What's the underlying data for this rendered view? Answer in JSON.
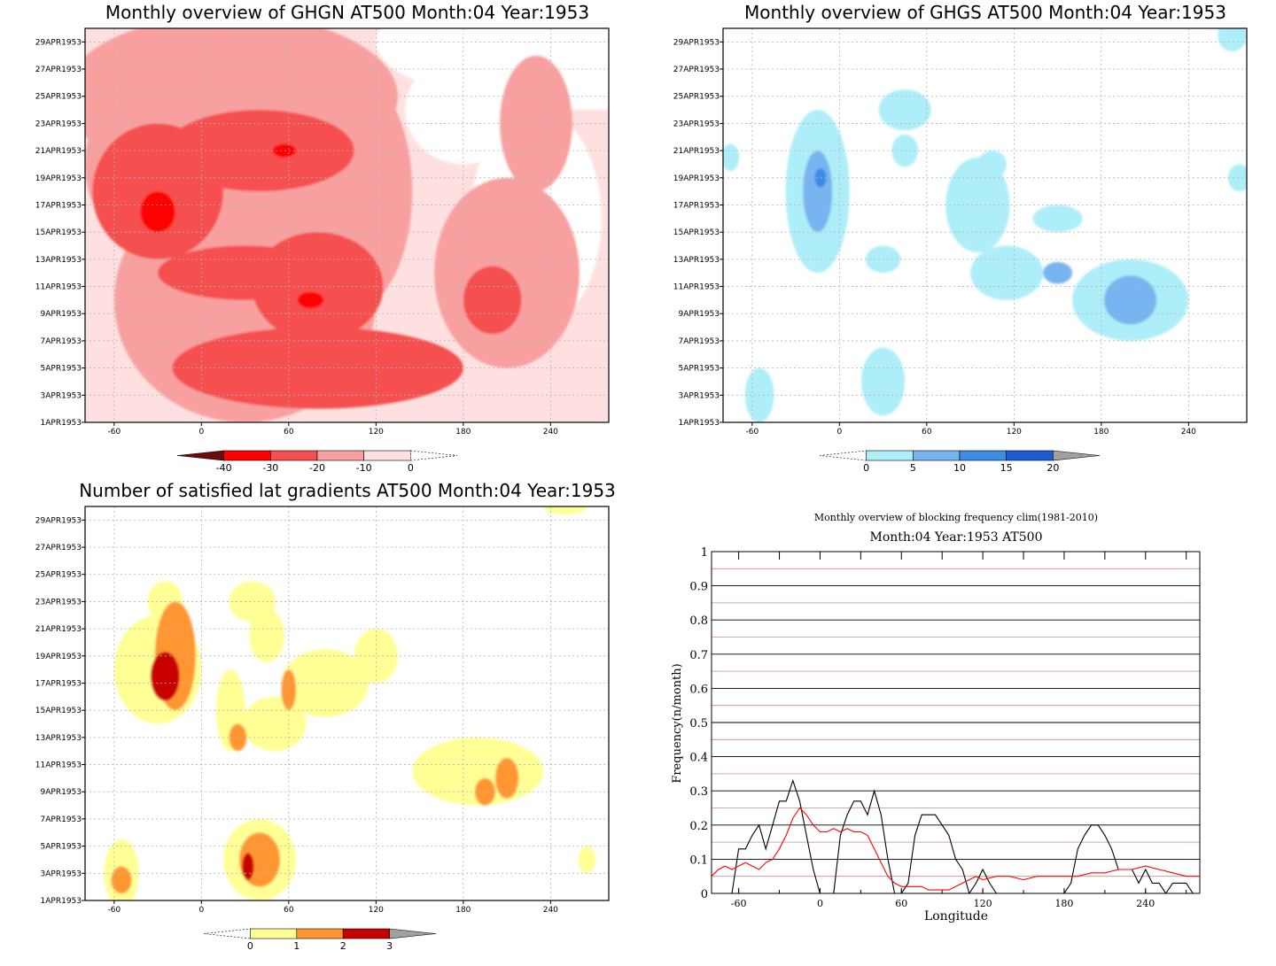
{
  "chart_data": [
    {
      "type": "heatmap",
      "title": "Monthly overview of GHGN AT500 Month:04 Year:1953",
      "x_ticks": [
        "-60",
        "0",
        "60",
        "120",
        "180",
        "240"
      ],
      "x_tick_values": [
        -60,
        0,
        60,
        120,
        180,
        240
      ],
      "xlim": [
        -80,
        280
      ],
      "y_ticks": [
        "1APR1953",
        "3APR1953",
        "5APR1953",
        "7APR1953",
        "9APR1953",
        "11APR1953",
        "13APR1953",
        "15APR1953",
        "17APR1953",
        "19APR1953",
        "21APR1953",
        "23APR1953",
        "25APR1953",
        "27APR1953",
        "29APR1953"
      ],
      "ylim": [
        1,
        30
      ],
      "grid": true,
      "colorbar": {
        "labels": [
          "-40",
          "-30",
          "-20",
          "-10",
          "0"
        ],
        "colors": [
          "#6e0a0a",
          "#ff0000",
          "#f55050",
          "#f8a0a0",
          "#ffe0e0",
          "#ffffff"
        ]
      },
      "fields": [
        {
          "x": 270,
          "y": 29,
          "rx": 150,
          "ry": 5,
          "level": 0
        },
        {
          "x": 180,
          "y": 24,
          "rx": 40,
          "ry": 4,
          "level": 0
        },
        {
          "x": 230,
          "y": 16,
          "rx": 45,
          "ry": 8,
          "level": 0
        },
        {
          "x": 20,
          "y": 25,
          "rx": 115,
          "ry": 6,
          "level": 1
        },
        {
          "x": 0,
          "y": 20,
          "rx": 80,
          "ry": 8,
          "level": 1
        },
        {
          "x": 30,
          "y": 10,
          "rx": 90,
          "ry": 9,
          "level": 1
        },
        {
          "x": 230,
          "y": 23,
          "rx": 25,
          "ry": 5,
          "level": 1
        },
        {
          "x": 210,
          "y": 12,
          "rx": 50,
          "ry": 7,
          "level": 1
        },
        {
          "x": 100,
          "y": 18,
          "rx": 45,
          "ry": 9,
          "level": 1
        },
        {
          "x": -30,
          "y": 18,
          "rx": 45,
          "ry": 5,
          "level": 2
        },
        {
          "x": 40,
          "y": 21,
          "rx": 65,
          "ry": 3,
          "level": 2
        },
        {
          "x": 30,
          "y": 12,
          "rx": 60,
          "ry": 2,
          "level": 2
        },
        {
          "x": 80,
          "y": 5,
          "rx": 100,
          "ry": 3,
          "level": 2
        },
        {
          "x": 80,
          "y": 11,
          "rx": 45,
          "ry": 4,
          "level": 2
        },
        {
          "x": 200,
          "y": 10,
          "rx": 20,
          "ry": 2.5,
          "level": 2
        },
        {
          "x": -30,
          "y": 16.5,
          "rx": 12,
          "ry": 1.5,
          "level": 3
        },
        {
          "x": 57,
          "y": 21,
          "rx": 8,
          "ry": 0.5,
          "level": 3
        },
        {
          "x": 75,
          "y": 10,
          "rx": 9,
          "ry": 0.6,
          "level": 3
        }
      ]
    },
    {
      "type": "heatmap",
      "title": "Monthly overview of GHGS AT500 Month:04 Year:1953",
      "x_ticks": [
        "-60",
        "0",
        "60",
        "120",
        "180",
        "240"
      ],
      "x_tick_values": [
        -60,
        0,
        60,
        120,
        180,
        240
      ],
      "xlim": [
        -80,
        280
      ],
      "y_ticks": [
        "1APR1953",
        "3APR1953",
        "5APR1953",
        "7APR1953",
        "9APR1953",
        "11APR1953",
        "13APR1953",
        "15APR1953",
        "17APR1953",
        "19APR1953",
        "21APR1953",
        "23APR1953",
        "25APR1953",
        "27APR1953",
        "29APR1953"
      ],
      "ylim": [
        1,
        30
      ],
      "grid": true,
      "colorbar": {
        "labels": [
          "0",
          "5",
          "10",
          "15",
          "20"
        ],
        "colors": [
          "#ffffff",
          "#aeeef8",
          "#78b4f0",
          "#3c8ce8",
          "#1e5ad2",
          "#a0a0a0"
        ]
      },
      "fields": [
        {
          "x": -15,
          "y": 18,
          "rx": 22,
          "ry": 6,
          "level": 1
        },
        {
          "x": 45,
          "y": 24,
          "rx": 18,
          "ry": 1.5,
          "level": 1
        },
        {
          "x": 115,
          "y": 12,
          "rx": 25,
          "ry": 2,
          "level": 1
        },
        {
          "x": 95,
          "y": 17,
          "rx": 22,
          "ry": 3.5,
          "level": 1
        },
        {
          "x": 200,
          "y": 10,
          "rx": 40,
          "ry": 3,
          "level": 1
        },
        {
          "x": -55,
          "y": 3,
          "rx": 10,
          "ry": 2,
          "level": 1
        },
        {
          "x": 30,
          "y": 4,
          "rx": 15,
          "ry": 2.5,
          "level": 1
        },
        {
          "x": 150,
          "y": 16,
          "rx": 17,
          "ry": 1,
          "level": 1
        },
        {
          "x": 270,
          "y": 29.5,
          "rx": 10,
          "ry": 1.2,
          "level": 1
        },
        {
          "x": 30,
          "y": 13,
          "rx": 12,
          "ry": 1,
          "level": 1
        },
        {
          "x": 275,
          "y": 19,
          "rx": 8,
          "ry": 1,
          "level": 1
        },
        {
          "x": -75,
          "y": 20.5,
          "rx": 6,
          "ry": 1,
          "level": 1
        },
        {
          "x": 105,
          "y": 20,
          "rx": 10,
          "ry": 1,
          "level": 1
        },
        {
          "x": 45,
          "y": 21,
          "rx": 9,
          "ry": 1.2,
          "level": 1
        },
        {
          "x": -15,
          "y": 18,
          "rx": 10,
          "ry": 3,
          "level": 2
        },
        {
          "x": 200,
          "y": 10,
          "rx": 18,
          "ry": 1.8,
          "level": 2
        },
        {
          "x": 150,
          "y": 12,
          "rx": 10,
          "ry": 0.8,
          "level": 2
        },
        {
          "x": -13,
          "y": 19,
          "rx": 4,
          "ry": 0.7,
          "level": 3
        }
      ]
    },
    {
      "type": "heatmap",
      "title": "Number of satisfied lat gradients AT500 Month:04 Year:1953",
      "x_ticks": [
        "-60",
        "0",
        "60",
        "120",
        "180",
        "240"
      ],
      "x_tick_values": [
        -60,
        0,
        60,
        120,
        180,
        240
      ],
      "xlim": [
        -80,
        280
      ],
      "y_ticks": [
        "1APR1953",
        "3APR1953",
        "5APR1953",
        "7APR1953",
        "9APR1953",
        "11APR1953",
        "13APR1953",
        "15APR1953",
        "17APR1953",
        "19APR1953",
        "21APR1953",
        "23APR1953",
        "25APR1953",
        "27APR1953",
        "29APR1953"
      ],
      "ylim": [
        1,
        30
      ],
      "grid": true,
      "colorbar": {
        "labels": [
          "0",
          "1",
          "2",
          "3"
        ],
        "colors": [
          "#ffffff",
          "#ffff96",
          "#ff9632",
          "#c80000",
          "#a0a0a0"
        ]
      },
      "fields": [
        {
          "x": -30,
          "y": 18,
          "rx": 30,
          "ry": 4,
          "level": 1
        },
        {
          "x": -25,
          "y": 23,
          "rx": 12,
          "ry": 1.5,
          "level": 1
        },
        {
          "x": 35,
          "y": 23,
          "rx": 16,
          "ry": 1.5,
          "level": 1
        },
        {
          "x": 85,
          "y": 17,
          "rx": 30,
          "ry": 2.5,
          "level": 1
        },
        {
          "x": 50,
          "y": 14,
          "rx": 22,
          "ry": 2,
          "level": 1
        },
        {
          "x": 190,
          "y": 10.5,
          "rx": 45,
          "ry": 2.5,
          "level": 1
        },
        {
          "x": -55,
          "y": 3,
          "rx": 12,
          "ry": 2.5,
          "level": 1
        },
        {
          "x": 40,
          "y": 4,
          "rx": 25,
          "ry": 3,
          "level": 1
        },
        {
          "x": 265,
          "y": 4,
          "rx": 6,
          "ry": 1,
          "level": 1
        },
        {
          "x": 250,
          "y": 30,
          "rx": 15,
          "ry": 0.6,
          "level": 1
        },
        {
          "x": 120,
          "y": 19,
          "rx": 15,
          "ry": 2,
          "level": 1
        },
        {
          "x": 45,
          "y": 20.5,
          "rx": 12,
          "ry": 2,
          "level": 1
        },
        {
          "x": 20,
          "y": 15,
          "rx": 10,
          "ry": 3,
          "level": 1
        },
        {
          "x": -18,
          "y": 19,
          "rx": 14,
          "ry": 4,
          "level": 2
        },
        {
          "x": 60,
          "y": 16.5,
          "rx": 5,
          "ry": 1.5,
          "level": 2
        },
        {
          "x": 25,
          "y": 13,
          "rx": 6,
          "ry": 1,
          "level": 2
        },
        {
          "x": 40,
          "y": 4,
          "rx": 14,
          "ry": 2,
          "level": 2
        },
        {
          "x": -55,
          "y": 2.5,
          "rx": 7,
          "ry": 1,
          "level": 2
        },
        {
          "x": 210,
          "y": 10,
          "rx": 8,
          "ry": 1.5,
          "level": 2
        },
        {
          "x": 195,
          "y": 9,
          "rx": 7,
          "ry": 1,
          "level": 2
        },
        {
          "x": -25,
          "y": 17.5,
          "rx": 10,
          "ry": 1.8,
          "level": 3
        },
        {
          "x": 32,
          "y": 3.5,
          "rx": 4,
          "ry": 1,
          "level": 3
        }
      ]
    },
    {
      "type": "line",
      "title": "Monthly overview of blocking frequency clim(1981-2010)",
      "subtitle": "Month:04 Year:1953  AT500",
      "xlabel": "Longitude",
      "ylabel": "Frequency(n/month)",
      "xlim": [
        -80,
        280
      ],
      "ylim": [
        0,
        1
      ],
      "x_ticks": [
        "-60",
        "0",
        "60",
        "120",
        "180",
        "240"
      ],
      "x_tick_values": [
        -60,
        0,
        60,
        120,
        180,
        240
      ],
      "y_ticks": [
        "0",
        "0.1",
        "0.2",
        "0.3",
        "0.4",
        "0.5",
        "0.6",
        "0.7",
        "0.8",
        "0.9",
        "1"
      ],
      "y_tick_values": [
        0,
        0.1,
        0.2,
        0.3,
        0.4,
        0.5,
        0.6,
        0.7,
        0.8,
        0.9,
        1.0
      ],
      "grid": true,
      "series": [
        {
          "color": "#000000",
          "x": [
            -80,
            -75,
            -70,
            -65,
            -60,
            -55,
            -50,
            -45,
            -40,
            -35,
            -30,
            -25,
            -20,
            -15,
            -10,
            -5,
            0,
            5,
            10,
            15,
            20,
            25,
            30,
            35,
            40,
            45,
            50,
            55,
            60,
            65,
            70,
            75,
            80,
            85,
            90,
            95,
            100,
            105,
            110,
            115,
            120,
            125,
            130,
            180,
            185,
            190,
            195,
            200,
            205,
            210,
            215,
            220,
            225,
            230,
            235,
            240,
            245,
            250,
            255,
            260,
            265,
            270,
            275
          ],
          "y": [
            0.0,
            0.0,
            0.0,
            0.0,
            0.13,
            0.13,
            0.17,
            0.2,
            0.13,
            0.2,
            0.27,
            0.27,
            0.33,
            0.27,
            0.17,
            0.07,
            0.0,
            0.0,
            0.0,
            0.17,
            0.23,
            0.27,
            0.27,
            0.23,
            0.3,
            0.23,
            0.1,
            0.0,
            0.0,
            0.03,
            0.17,
            0.23,
            0.23,
            0.23,
            0.2,
            0.17,
            0.1,
            0.07,
            0.0,
            0.03,
            0.07,
            0.03,
            0.0,
            0.0,
            0.03,
            0.13,
            0.17,
            0.2,
            0.2,
            0.17,
            0.13,
            0.07,
            0.07,
            0.07,
            0.03,
            0.07,
            0.03,
            0.03,
            0.0,
            0.03,
            0.03,
            0.03,
            0.0
          ]
        },
        {
          "color": "#ff0000",
          "x": [
            -80,
            -75,
            -70,
            -65,
            -60,
            -55,
            -50,
            -45,
            -40,
            -35,
            -30,
            -25,
            -20,
            -15,
            -10,
            -5,
            0,
            5,
            10,
            15,
            20,
            25,
            30,
            35,
            40,
            45,
            50,
            55,
            60,
            65,
            70,
            75,
            80,
            85,
            90,
            95,
            100,
            105,
            110,
            115,
            120,
            130,
            140,
            150,
            160,
            170,
            180,
            190,
            200,
            210,
            220,
            230,
            240,
            250,
            260,
            270,
            280
          ],
          "y": [
            0.05,
            0.07,
            0.08,
            0.07,
            0.08,
            0.09,
            0.08,
            0.07,
            0.09,
            0.1,
            0.13,
            0.17,
            0.22,
            0.25,
            0.23,
            0.2,
            0.18,
            0.18,
            0.19,
            0.18,
            0.19,
            0.18,
            0.18,
            0.17,
            0.13,
            0.09,
            0.05,
            0.03,
            0.02,
            0.02,
            0.02,
            0.02,
            0.01,
            0.01,
            0.01,
            0.01,
            0.02,
            0.03,
            0.04,
            0.05,
            0.04,
            0.05,
            0.05,
            0.04,
            0.05,
            0.05,
            0.05,
            0.05,
            0.06,
            0.06,
            0.07,
            0.07,
            0.08,
            0.07,
            0.06,
            0.05,
            0.05
          ]
        }
      ]
    }
  ]
}
